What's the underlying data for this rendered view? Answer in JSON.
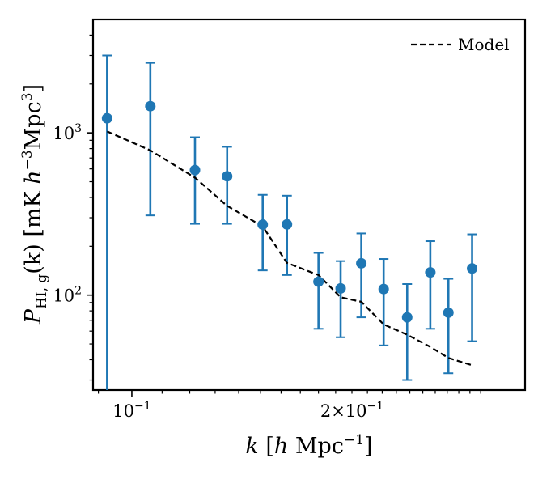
{
  "chart_data": {
    "type": "scatter",
    "xscale": "log",
    "yscale": "log",
    "xlim": [
      0.0885,
      0.345
    ],
    "ylim": [
      26,
      5000
    ],
    "xlabel": "k [h Mpc⁻¹]",
    "ylabel": "P_HI,g(k) [mK h⁻³Mpc³]",
    "xlabel_parts": {
      "var": "k",
      "open": " [",
      "h": "h",
      "unit": " Mpc",
      "exp": "−1",
      "close": "]"
    },
    "ylabel_parts": {
      "var": "P",
      "sub": "HI, g",
      "arg": "(k) [mK ",
      "h": "h",
      "exp1": "−3",
      "mid": "Mpc",
      "exp2": "3",
      "close": "]"
    },
    "xticks": [
      {
        "value": 0.1,
        "base": "10",
        "exp": "−1"
      },
      {
        "value": 0.2,
        "base": "2×10",
        "exp": "−1"
      }
    ],
    "yticks": [
      {
        "value": 100,
        "base": "10",
        "exp": "2"
      },
      {
        "value": 1000,
        "base": "10",
        "exp": "3"
      }
    ],
    "grid": false,
    "legend": {
      "position": "top-right",
      "entries": [
        "Model"
      ]
    },
    "colors": {
      "data": "#1f77b4",
      "model": "#000000"
    },
    "series": [
      {
        "type": "errorbar",
        "points": [
          {
            "x": 0.0925,
            "y": 1230,
            "yerr_low": 26,
            "yerr_high": 3000
          },
          {
            "x": 0.106,
            "y": 1460,
            "yerr_low": 310,
            "yerr_high": 2700
          },
          {
            "x": 0.122,
            "y": 590,
            "yerr_low": 275,
            "yerr_high": 940
          },
          {
            "x": 0.135,
            "y": 540,
            "yerr_low": 275,
            "yerr_high": 820
          },
          {
            "x": 0.151,
            "y": 272,
            "yerr_low": 142,
            "yerr_high": 415
          },
          {
            "x": 0.163,
            "y": 273,
            "yerr_low": 133,
            "yerr_high": 410
          },
          {
            "x": 0.18,
            "y": 121,
            "yerr_low": 62,
            "yerr_high": 182
          },
          {
            "x": 0.193,
            "y": 110,
            "yerr_low": 55,
            "yerr_high": 162
          },
          {
            "x": 0.206,
            "y": 157,
            "yerr_low": 73,
            "yerr_high": 240
          },
          {
            "x": 0.221,
            "y": 109,
            "yerr_low": 49,
            "yerr_high": 167
          },
          {
            "x": 0.238,
            "y": 73,
            "yerr_low": 30,
            "yerr_high": 117
          },
          {
            "x": 0.256,
            "y": 138,
            "yerr_low": 62,
            "yerr_high": 215
          },
          {
            "x": 0.271,
            "y": 78,
            "yerr_low": 33,
            "yerr_high": 126
          },
          {
            "x": 0.292,
            "y": 146,
            "yerr_low": 52,
            "yerr_high": 237
          }
        ]
      },
      {
        "name": "Model",
        "type": "line",
        "style": "dashed",
        "points": [
          [
            0.0925,
            1020
          ],
          [
            0.106,
            780
          ],
          [
            0.122,
            530
          ],
          [
            0.135,
            355
          ],
          [
            0.151,
            265
          ],
          [
            0.163,
            158
          ],
          [
            0.18,
            133
          ],
          [
            0.193,
            97
          ],
          [
            0.206,
            91
          ],
          [
            0.221,
            66
          ],
          [
            0.238,
            57
          ],
          [
            0.256,
            48
          ],
          [
            0.271,
            41
          ],
          [
            0.292,
            37
          ]
        ]
      }
    ]
  }
}
